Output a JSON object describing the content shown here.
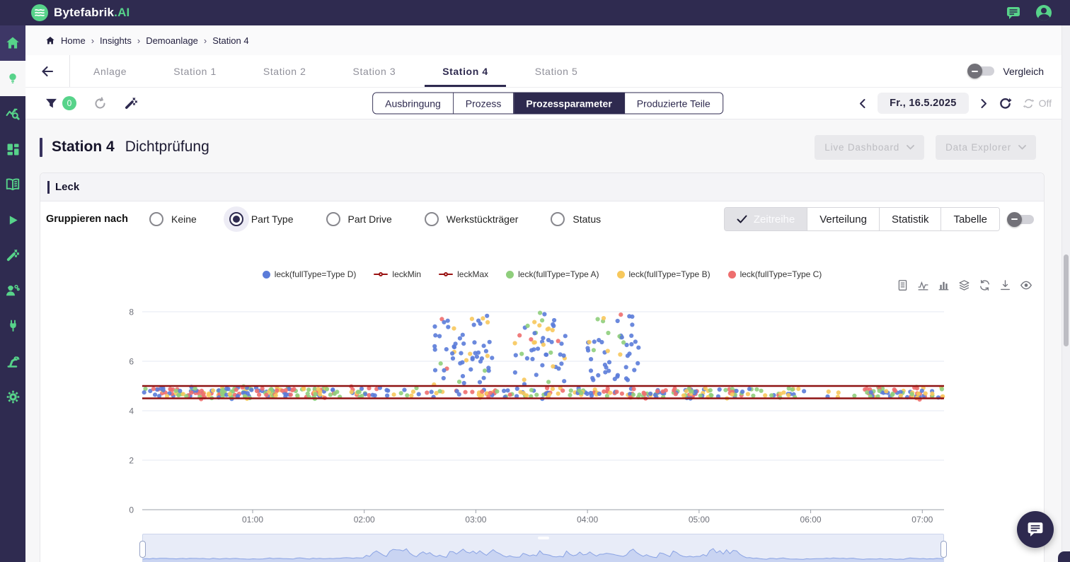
{
  "topbar": {
    "brand": "Bytefabrik",
    "brand_suffix": ".AI",
    "icons": [
      "chat",
      "account"
    ]
  },
  "sidebar": {
    "icons": [
      "home",
      "insights-bulb",
      "analytics-search",
      "dashboard-grid",
      "documentation-book",
      "play",
      "magic-wand",
      "operator",
      "connector-plug",
      "robot-arm",
      "settings-gear"
    ],
    "active": "insights-bulb"
  },
  "breadcrumb": {
    "items": [
      "Home",
      "Insights",
      "Demoanlage",
      "Station 4"
    ],
    "separator": "›"
  },
  "station_nav": {
    "tabs": [
      "Anlage",
      "Station 1",
      "Station 2",
      "Station 3",
      "Station 4",
      "Station 5"
    ],
    "active_index": 4,
    "compare_label": "Vergleich"
  },
  "filter_bar": {
    "filter_count": "0",
    "view_tabs": [
      "Ausbringung",
      "Prozess",
      "Prozessparameter",
      "Produzierte Teile"
    ],
    "active_view_index": 2,
    "date_label": "Fr., 16.5.2025",
    "autorefresh_label": "Off"
  },
  "page_header": {
    "title": "Station 4",
    "subtitle": "Dichtprüfung",
    "buttons": [
      "Live Dashboard",
      "Data Explorer"
    ]
  },
  "panel": {
    "title": "Leck",
    "group_by_label": "Gruppieren nach",
    "group_options": [
      "Keine",
      "Part Type",
      "Part Drive",
      "Werkstückträger",
      "Status"
    ],
    "selected_option_index": 1,
    "display_tabs": [
      "Zeitreihe",
      "Verteilung",
      "Statistik",
      "Tabelle"
    ],
    "active_display_index": 0
  },
  "chart_data": {
    "type": "scatter",
    "title": "Leck",
    "legend": [
      {
        "label": "leck(fullType=Type D)",
        "color": "#5b7cd9",
        "marker": "dot"
      },
      {
        "label": "leckMin",
        "color": "#9a1212",
        "marker": "line"
      },
      {
        "label": "leckMax",
        "color": "#9a1212",
        "marker": "line"
      },
      {
        "label": "leck(fullType=Type A)",
        "color": "#8fce7c",
        "marker": "dot"
      },
      {
        "label": "leck(fullType=Type B)",
        "color": "#f7c85c",
        "marker": "dot"
      },
      {
        "label": "leck(fullType=Type C)",
        "color": "#ee6e6e",
        "marker": "dot"
      }
    ],
    "ylim": [
      0,
      8
    ],
    "yticks": [
      0,
      2,
      4,
      6,
      8
    ],
    "xtick_hours": [
      1,
      2,
      3,
      4,
      5,
      6,
      7
    ],
    "xtick_labels": [
      "01:00",
      "02:00",
      "03:00",
      "04:00",
      "05:00",
      "06:00",
      "07:00"
    ],
    "x_hours_range": [
      0.02,
      7.19
    ],
    "ref_lines": {
      "leckMax": 5.0,
      "leckMin": 4.5
    },
    "grid": true,
    "legend_position": "top",
    "band": {
      "y_range": [
        4.44,
        5.02
      ],
      "segments": [
        [
          0.02,
          1.68,
          110
        ],
        [
          1.68,
          2.05,
          60
        ],
        [
          2.05,
          2.55,
          30
        ],
        [
          2.55,
          3.0,
          25
        ],
        [
          3.0,
          3.6,
          55
        ],
        [
          3.6,
          4.5,
          65
        ],
        [
          4.5,
          5.4,
          80
        ],
        [
          5.4,
          5.9,
          45
        ],
        [
          5.9,
          6.5,
          12
        ],
        [
          6.5,
          7.19,
          95
        ]
      ],
      "color_weights": [
        [
          "#5b7cd9",
          0.3
        ],
        [
          "#8fce7c",
          0.26
        ],
        [
          "#f7c85c",
          0.2
        ],
        [
          "#ee6e6e",
          0.24
        ]
      ]
    },
    "bursts": {
      "y_range": [
        5.05,
        7.97
      ],
      "clusters": [
        [
          2.62,
          3.18,
          60
        ],
        [
          3.34,
          3.82,
          52
        ],
        [
          4.0,
          4.46,
          50
        ]
      ],
      "color_weights": [
        [
          "#5b7cd9",
          0.66
        ],
        [
          "#f7c85c",
          0.15
        ],
        [
          "#8fce7c",
          0.13
        ],
        [
          "#ee6e6e",
          0.06
        ]
      ]
    },
    "brush_profile": [
      [
        0,
        2.0,
        0.14,
        0.1
      ],
      [
        2.0,
        5.35,
        0.18,
        0.62
      ],
      [
        5.35,
        7.19,
        0.13,
        0.1
      ]
    ],
    "seed": 7,
    "colors": {
      "axis": "#9ba0a8",
      "grid": "#e5eaf3",
      "tick_text": "#6e7079",
      "ref_line": "#8e1212",
      "brush_fill": "#b9c7ee",
      "brush_line": "#8aa3e4"
    }
  }
}
